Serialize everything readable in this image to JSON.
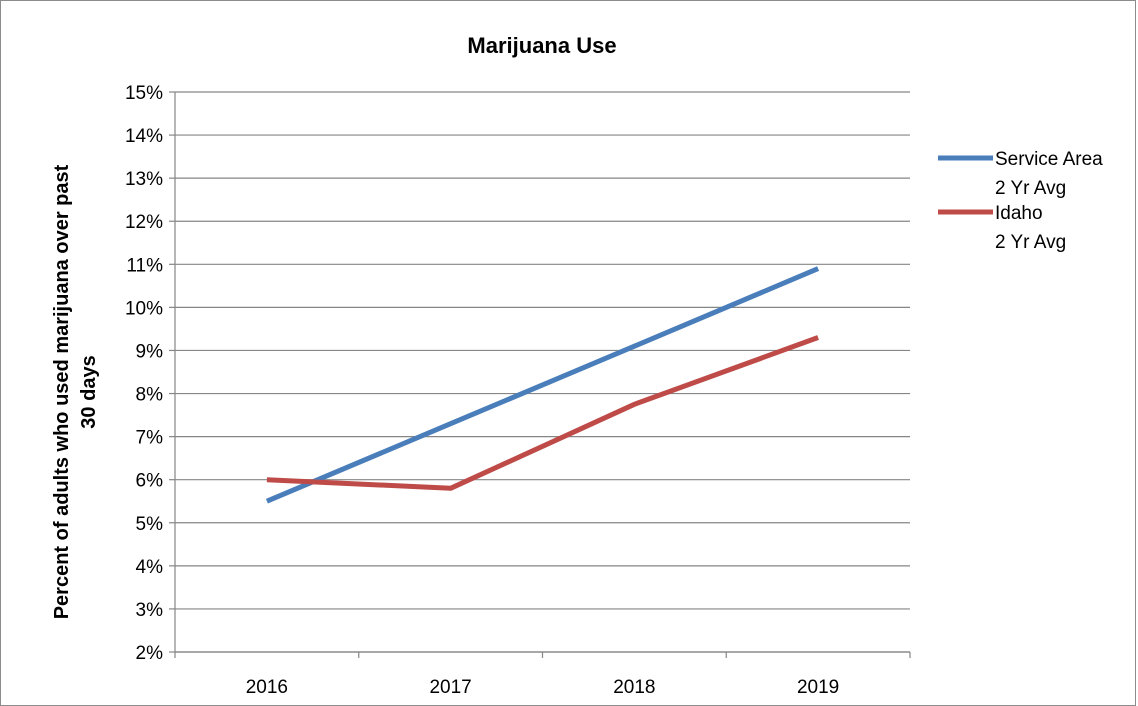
{
  "chart_data": {
    "type": "line",
    "title": "Marijuana Use",
    "xlabel": "",
    "ylabel": [
      "Percent of  adults who used marijuana over past",
      "30 days"
    ],
    "categories": [
      "2016",
      "2017",
      "2018",
      "2019"
    ],
    "ylim": [
      2,
      15
    ],
    "y_ticks": [
      "2%",
      "3%",
      "4%",
      "5%",
      "6%",
      "7%",
      "8%",
      "9%",
      "10%",
      "11%",
      "12%",
      "13%",
      "14%",
      "15%"
    ],
    "grid": "horizontal",
    "legend_position": "right",
    "series": [
      {
        "name": [
          "Service Area",
          "2 Yr Avg"
        ],
        "color": "#4a7ebb",
        "values": [
          5.5,
          7.3,
          9.1,
          10.9
        ]
      },
      {
        "name": [
          "Idaho",
          "2 Yr Avg"
        ],
        "color": "#be4b48",
        "values": [
          6.0,
          5.8,
          7.75,
          9.3
        ]
      }
    ]
  }
}
